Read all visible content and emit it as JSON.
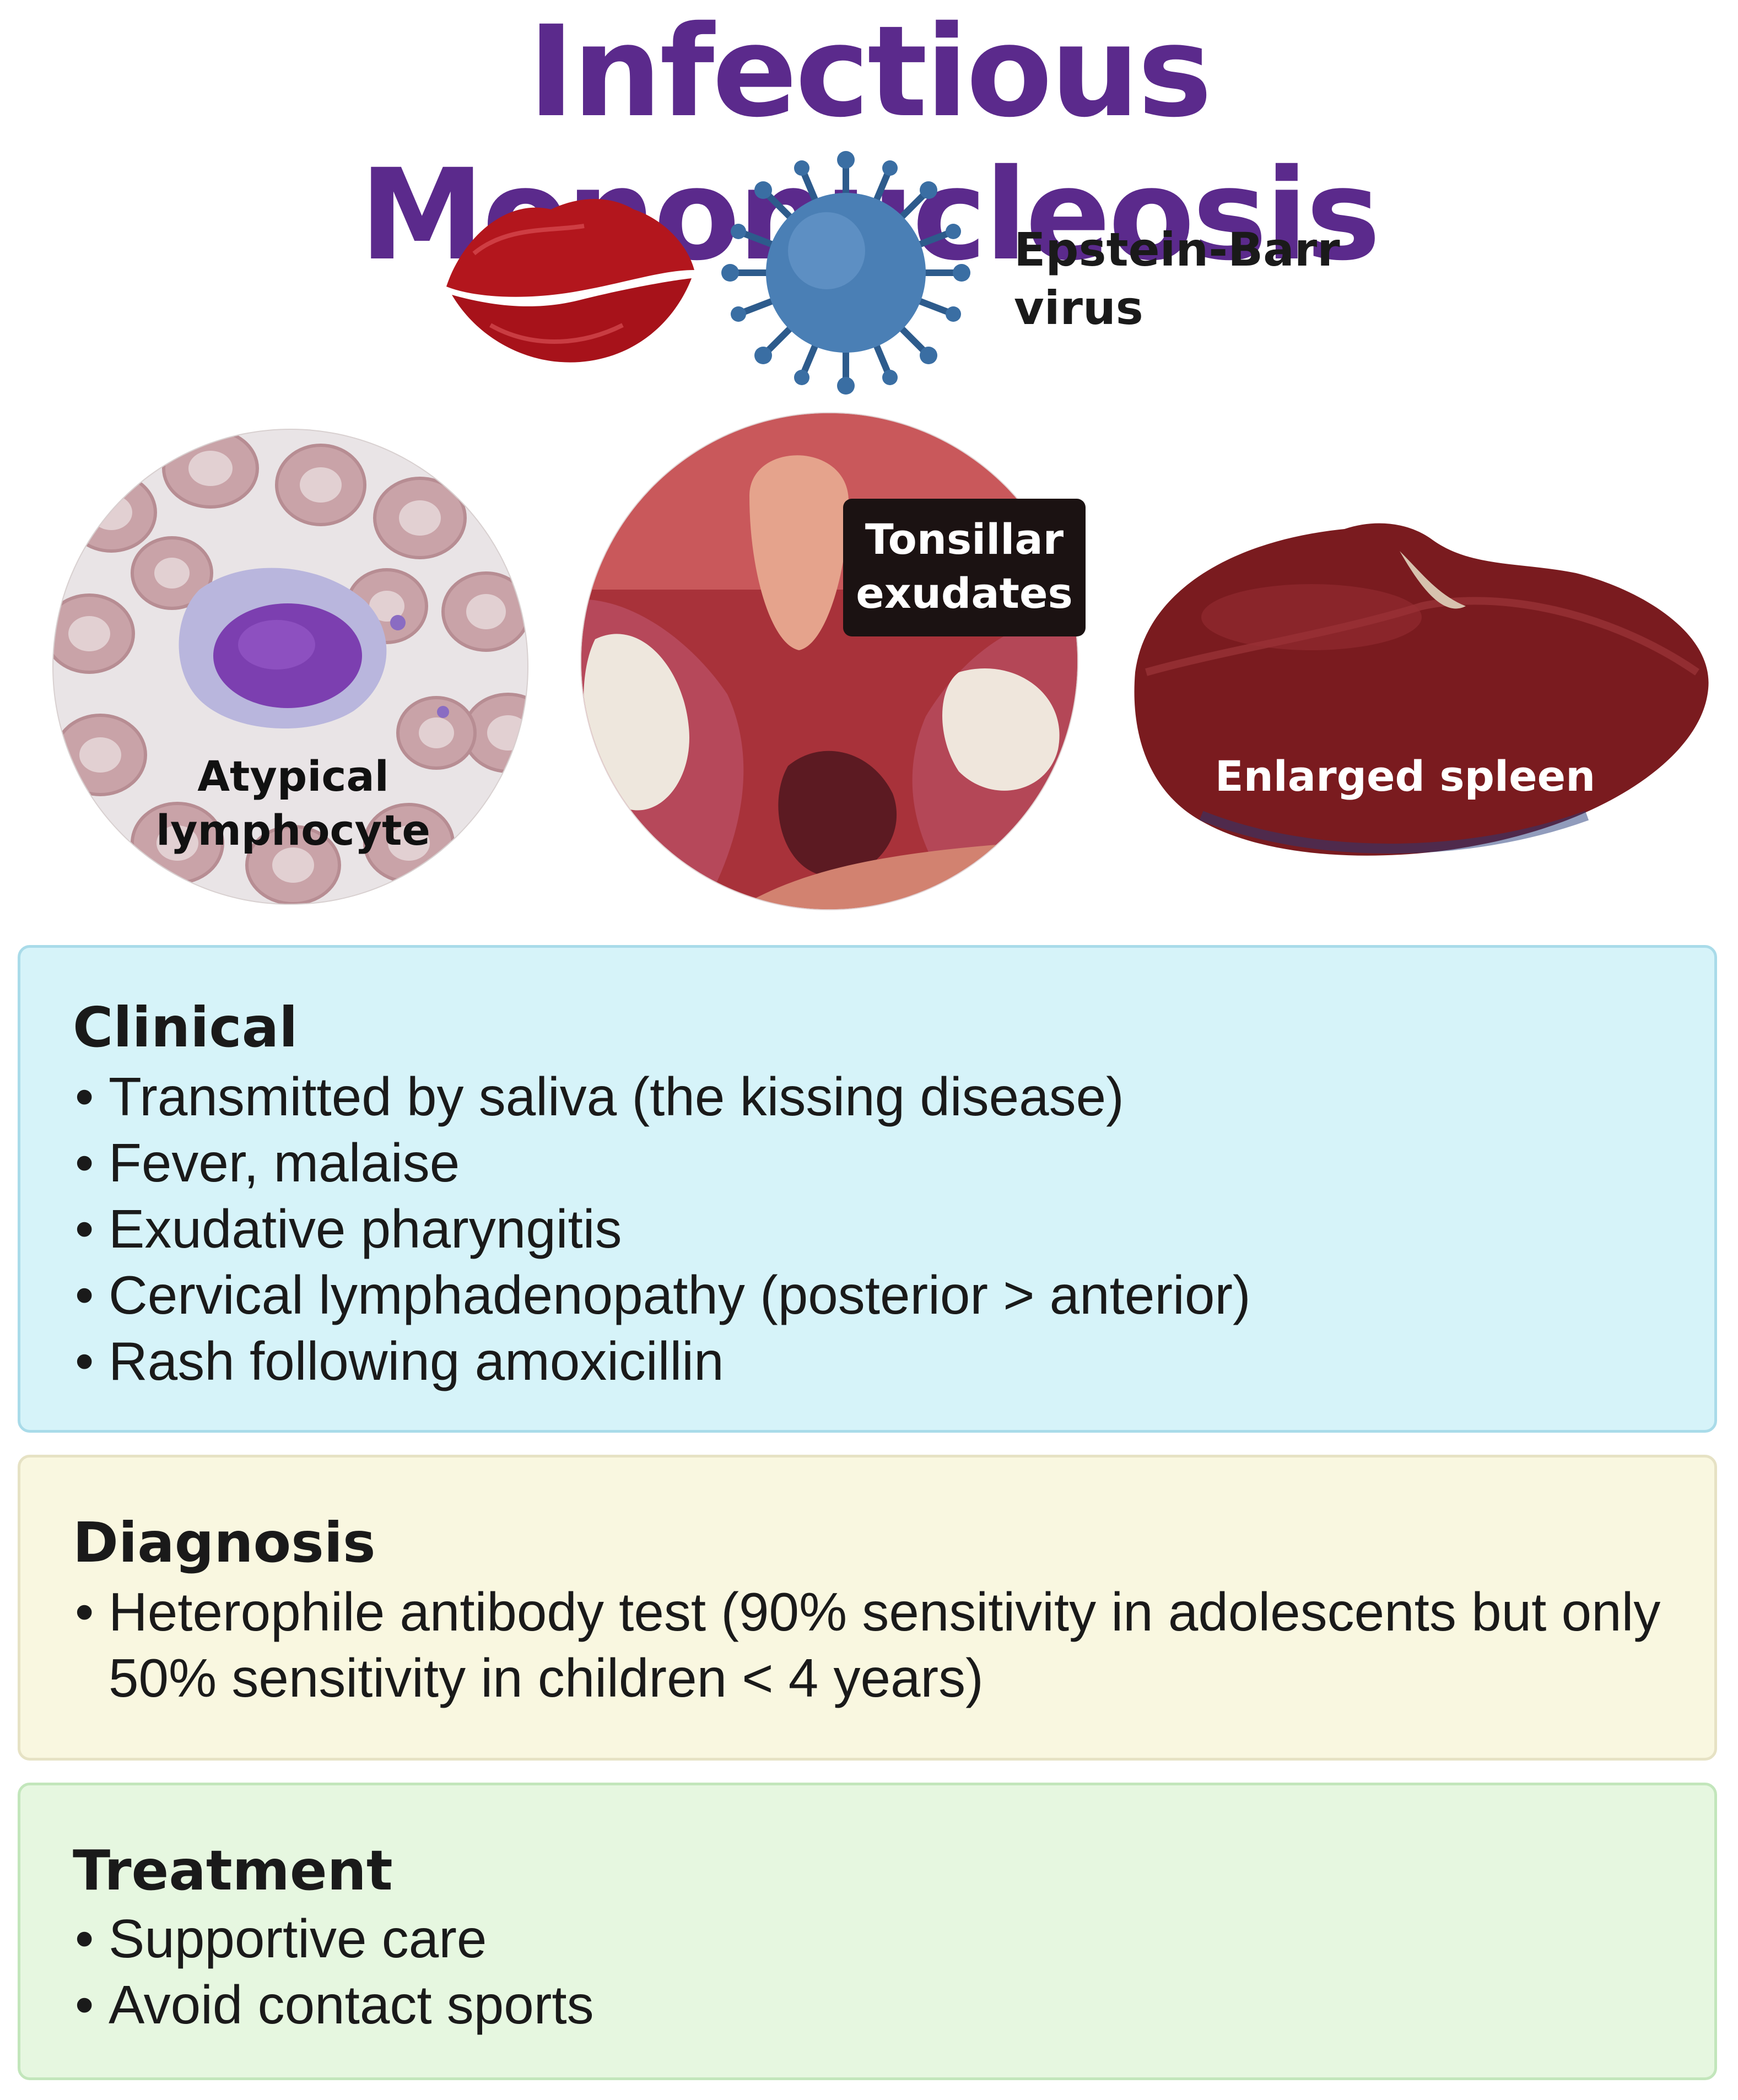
{
  "title": "Infectious Mononucleosis",
  "colors": {
    "title": "#5b2a8c",
    "clinical_bg": "#d6f3f9",
    "clinical_border": "#a9dbe9",
    "diagnosis_bg": "#f9f7e0",
    "diagnosis_border": "#e6e2c4",
    "treatment_bg": "#e6f7e0",
    "treatment_border": "#c2e6bb"
  },
  "images": {
    "lips": {
      "icon": "lips-icon"
    },
    "virus": {
      "icon": "virus-icon",
      "label_line1": "Epstein-Barr",
      "label_line2": "virus"
    },
    "lymphocyte": {
      "label_line1": "Atypical",
      "label_line2": "lymphocyte"
    },
    "tonsils": {
      "label_line1": "Tonsillar",
      "label_line2": "exudates"
    },
    "spleen": {
      "label": "Enlarged spleen"
    }
  },
  "clinical": {
    "heading": "Clinical",
    "items": [
      "Transmitted by saliva (the kissing disease)",
      "Fever, malaise",
      "Exudative pharyngitis",
      "Cervical lymphadenopathy (posterior > anterior)",
      "Rash following amoxicillin"
    ]
  },
  "diagnosis": {
    "heading": "Diagnosis",
    "items": [
      "Heterophile antibody test (90% sensitivity in adolescents but only 50% sensitivity in children < 4 years)"
    ]
  },
  "treatment": {
    "heading": "Treatment",
    "items": [
      "Supportive care",
      "Avoid contact sports"
    ]
  }
}
